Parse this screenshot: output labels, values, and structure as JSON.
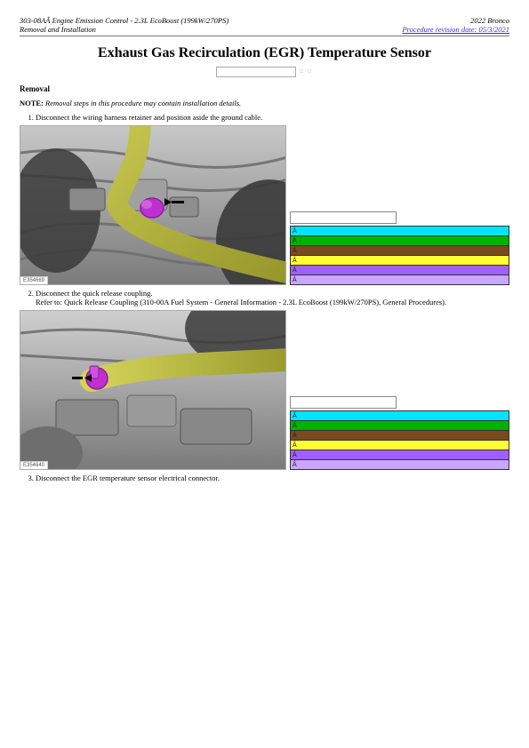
{
  "header": {
    "leftLine1": "303-08AÂ Engine Emission Control - 2.3L EcoBoost (199kW/270PS)",
    "leftLine2": "Removal and Installation",
    "rightLine1": "2022 Bronco",
    "rightLink": "Procedure revision date: 05/3/2021"
  },
  "title": "Exhaust Gas Recirculation (EGR) Temperature Sensor",
  "ctrl": {
    "placeholder": "",
    "dots": "□ □"
  },
  "sectionRemoval": "Removal",
  "note": {
    "label": "NOTE:",
    "text": " Removal steps in this procedure may contain installation details."
  },
  "steps": {
    "s1": "Disconnect the wiring harness retainer and position aside the ground cable.",
    "s2a": "Disconnect the quick release coupling.",
    "s2b": "Refer to: Quick Release Coupling (310-00A Fuel System - General Information -  2.3L EcoBoost (199kW/270PS), General Procedures).",
    "s3": "Disconnect the EGR temperature sensor electrical connector."
  },
  "imgtags": {
    "i1": "E354669",
    "i2": "E354640"
  },
  "colorRows": {
    "set1": [
      {
        "label": "Â",
        "bg": "#00e5ff"
      },
      {
        "label": "Â",
        "bg": "#00b300"
      },
      {
        "label": "Â",
        "bg": "#7a4a1f"
      },
      {
        "label": "Â",
        "bg": "#ffff33"
      },
      {
        "label": "Â",
        "bg": "#a060ff"
      },
      {
        "label": "Â",
        "bg": "#c9a6ff"
      }
    ],
    "set2": [
      {
        "label": "Â",
        "bg": "#00e5ff"
      },
      {
        "label": "Â",
        "bg": "#00b300"
      },
      {
        "label": "Â",
        "bg": "#7a4a1f"
      },
      {
        "label": "Â",
        "bg": "#ffff33"
      },
      {
        "label": "Â",
        "bg": "#a060ff"
      },
      {
        "label": "Â",
        "bg": "#c9a6ff"
      }
    ]
  },
  "svgColors": {
    "engineGray": "#9a9a9a",
    "engineDark": "#6f6f6f",
    "engineLight": "#c8c8c8",
    "hoseYellow": "#c2c24a",
    "hoseYellowDark": "#9a9a2e",
    "sensorMagenta": "#c030d0",
    "sensorMagentaDark": "#8a1f9a",
    "arrowBlack": "#000000",
    "pipeDark": "#3a3a3a"
  }
}
